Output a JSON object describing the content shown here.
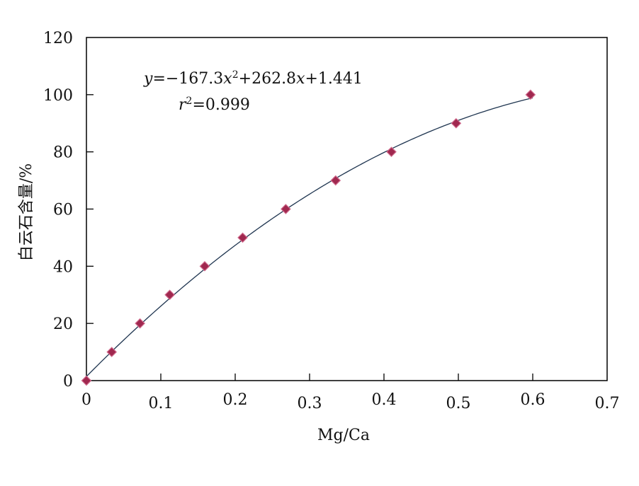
{
  "chart_data": {
    "type": "scatter",
    "xlabel": "Mg/Ca",
    "ylabel": "白云石含量/%",
    "xlim": [
      0,
      0.7
    ],
    "ylim": [
      0,
      120
    ],
    "x_ticks": [
      0,
      0.1,
      0.2,
      0.3,
      0.4,
      0.5,
      0.6,
      0.7
    ],
    "x_tick_labels": [
      "0",
      "0.1",
      "0.2",
      "0.3",
      "0.4",
      "0.5",
      "0.6",
      "0.7"
    ],
    "y_ticks": [
      0,
      20,
      40,
      60,
      80,
      100,
      120
    ],
    "y_tick_labels": [
      "0",
      "20",
      "40",
      "60",
      "80",
      "100",
      "120"
    ],
    "grid": false,
    "series": [
      {
        "x": [
          0,
          0.034,
          0.072,
          0.112,
          0.159,
          0.21,
          0.268,
          0.335,
          0.41,
          0.497,
          0.597
        ],
        "y": [
          0,
          10,
          20,
          30,
          40,
          50,
          60,
          70,
          80,
          90,
          100
        ]
      }
    ],
    "fit": {
      "type": "polynomial",
      "coefficients": [
        -167.3,
        262.8,
        1.441
      ],
      "domain": [
        0,
        0.6
      ]
    },
    "annotation": {
      "equation": {
        "y_var": "y",
        "eq1": "=−167.3",
        "x_var1": "x",
        "sup": "2",
        "eq2": "+262.8",
        "x_var2": "x",
        "eq3": "+1.441"
      },
      "r2": {
        "r_var": "r",
        "sup": "2",
        "value": "=0.999"
      }
    },
    "colors": {
      "marker": "#a0284f",
      "marker_highlight": "#d06a8c",
      "fit_line": "#1f3550",
      "axis": "#000000"
    }
  }
}
